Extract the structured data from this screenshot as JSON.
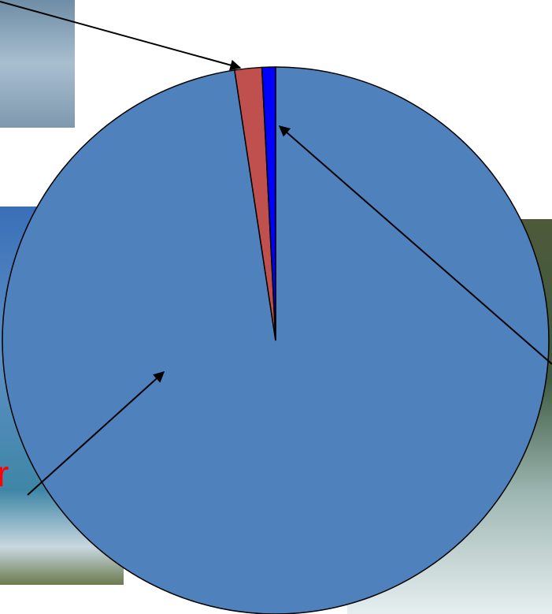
{
  "chart_data": {
    "type": "pie",
    "values": [
      97.6,
      1.6,
      0.8
    ],
    "colors": [
      "#4f81bd",
      "#c0504d",
      "#0000ff"
    ],
    "annotation": "r"
  }
}
